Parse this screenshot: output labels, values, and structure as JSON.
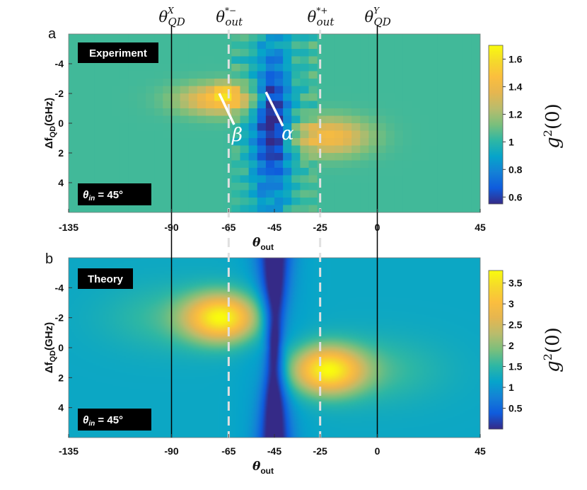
{
  "figure": {
    "panel_a_letter": "a",
    "panel_b_letter": "b",
    "top_markers": [
      {
        "theta_out": -90,
        "main": "θ",
        "sup": "X",
        "sub": "QD"
      },
      {
        "theta_out": -65,
        "main": "θ",
        "sup": "*−",
        "sub": "out"
      },
      {
        "theta_out": -25,
        "main": "θ",
        "sup": "*+",
        "sub": "out"
      },
      {
        "theta_out": 0,
        "main": "θ",
        "sup": "Y",
        "sub": "QD"
      }
    ],
    "solid_lines_theta_out": [
      -90,
      0
    ],
    "dashed_lines_theta_out": [
      -65,
      -25
    ],
    "panel_a_badge": "Experiment",
    "panel_b_badge": "Theory",
    "theta_in_badge": "θ",
    "theta_in_sub": "in",
    "theta_in_value": " = 45°",
    "annotation_beta": "β",
    "annotation_alpha": "α",
    "colorbar_label": "g",
    "colorbar_label_sup": "2",
    "colorbar_label_arg": "(0)",
    "ylabel_main": "Δf",
    "ylabel_sub": "QD",
    "ylabel_unit": "(GHz)",
    "xlabel_main": "θ",
    "xlabel_sub": "out",
    "colors": {
      "colormap": "parula",
      "badge_bg": "#000000",
      "dashed_line": "#e0e0e0",
      "solid_line": "#000000"
    }
  },
  "chart_data": [
    {
      "type": "heatmap",
      "panel": "a",
      "title": "Experiment",
      "xlabel": "θout",
      "ylabel": "ΔfQD(GHz)",
      "x_ticks": [
        -135,
        -90,
        -65,
        -45,
        -25,
        0,
        45
      ],
      "y_ticks": [
        -4,
        -2,
        0,
        2,
        4
      ],
      "xlim": [
        -135,
        45
      ],
      "ylim": [
        6,
        -6
      ],
      "colorbar_range": [
        0.55,
        1.7
      ],
      "colorbar_ticks": [
        0.6,
        0.8,
        1,
        1.2,
        1.4,
        1.6
      ],
      "pixelated": true,
      "features": [
        {
          "label": "β",
          "theta_out": -67,
          "detuning": -2,
          "g2": 1.7
        },
        {
          "label": "α",
          "theta_out": -45,
          "detuning": -2,
          "g2": 0.6
        },
        {
          "label": "bunching_neg",
          "theta_out": -70,
          "detuning": -1.5,
          "g2": 1.45
        },
        {
          "label": "bunching_pos",
          "theta_out": -20,
          "detuning": 1,
          "g2": 1.4
        },
        {
          "label": "background",
          "g2": 1.05
        }
      ]
    },
    {
      "type": "heatmap",
      "panel": "b",
      "title": "Theory",
      "xlabel": "θout",
      "ylabel": "ΔfQD(GHz)",
      "x_ticks": [
        -135,
        -90,
        -65,
        -45,
        -25,
        0,
        45
      ],
      "y_ticks": [
        -4,
        -2,
        0,
        2,
        4
      ],
      "xlim": [
        -135,
        45
      ],
      "ylim": [
        6,
        -6
      ],
      "colorbar_range": [
        0,
        3.8
      ],
      "colorbar_ticks": [
        0.5,
        1,
        1.5,
        2,
        2.5,
        3,
        3.5
      ],
      "pixelated": false,
      "features": [
        {
          "label": "bunching_neg",
          "theta_out": -67,
          "detuning": -2,
          "g2": 3.6
        },
        {
          "label": "bunching_pos",
          "theta_out": -22,
          "detuning": 1.5,
          "g2": 3.6
        },
        {
          "label": "antibunching_dip",
          "theta_out": -45,
          "detuning": 0,
          "g2": 0.05
        },
        {
          "label": "background",
          "g2": 1.2
        }
      ]
    }
  ]
}
